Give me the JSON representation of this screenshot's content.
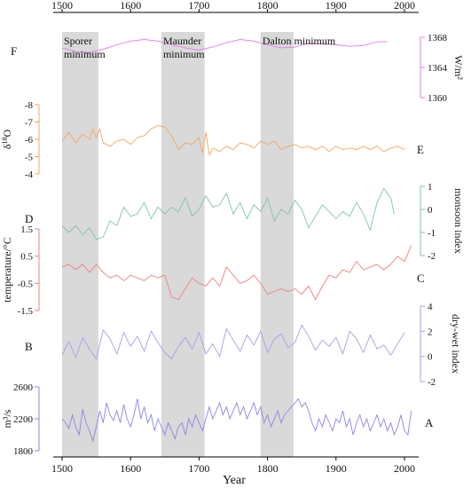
{
  "chart_data": {
    "type": "line",
    "xlabel": "Year",
    "xlim": [
      1500,
      2000
    ],
    "x_ticks": [
      "1500",
      "1600",
      "1700",
      "1800",
      "1900",
      "2000"
    ],
    "shaded_periods": [
      {
        "label_lines": [
          "Sporer",
          "minimum"
        ],
        "start": 1500,
        "end": 1553
      },
      {
        "label_lines": [
          "Maunder",
          "minimum"
        ],
        "start": 1645,
        "end": 1708
      },
      {
        "label_lines": [
          "Dalton minimum"
        ],
        "start": 1790,
        "end": 1838
      }
    ],
    "panels": [
      {
        "letter": "F",
        "ylabel": "W/m²",
        "color": "#e67ce6",
        "axis_side": "right",
        "ylim": [
          1360,
          1370
        ],
        "y_ticks": [
          "1368",
          "1364",
          "1360"
        ],
        "y_tick_values": [
          1368,
          1364,
          1360
        ],
        "x": [
          1500,
          1520,
          1540,
          1560,
          1580,
          1600,
          1620,
          1640,
          1660,
          1680,
          1700,
          1720,
          1740,
          1760,
          1780,
          1800,
          1820,
          1840,
          1860,
          1880,
          1900,
          1920,
          1940,
          1960,
          1975
        ],
        "values": [
          1366.6,
          1366.1,
          1366.0,
          1366.4,
          1367.0,
          1367.5,
          1367.7,
          1367.5,
          1367.0,
          1366.6,
          1366.3,
          1366.7,
          1367.3,
          1367.7,
          1367.5,
          1367.0,
          1366.6,
          1366.7,
          1367.2,
          1367.1,
          1367.0,
          1366.8,
          1366.9,
          1367.4,
          1367.4
        ]
      },
      {
        "letter": "E",
        "ylabel": "δ18O",
        "color": "#f5a75f",
        "axis_side": "left",
        "inverted": true,
        "ylim": [
          -4,
          -8
        ],
        "y_ticks": [
          "-8",
          "-7",
          "-6",
          "-5",
          "-4"
        ],
        "y_tick_values": [
          -8,
          -7,
          -6,
          -5,
          -4
        ],
        "x": [
          1500,
          1510,
          1520,
          1530,
          1540,
          1545,
          1550,
          1555,
          1560,
          1570,
          1580,
          1590,
          1600,
          1610,
          1620,
          1630,
          1640,
          1650,
          1660,
          1670,
          1680,
          1690,
          1700,
          1705,
          1710,
          1715,
          1720,
          1730,
          1740,
          1750,
          1760,
          1770,
          1780,
          1790,
          1800,
          1810,
          1820,
          1830,
          1840,
          1850,
          1860,
          1870,
          1880,
          1890,
          1900,
          1910,
          1920,
          1930,
          1940,
          1950,
          1960,
          1970,
          1980,
          1990,
          2000
        ],
        "values": [
          -5.9,
          -6.4,
          -5.8,
          -6.3,
          -6.0,
          -6.6,
          -6.1,
          -6.6,
          -5.8,
          -5.6,
          -5.9,
          -6.0,
          -5.7,
          -6.1,
          -6.2,
          -6.6,
          -6.8,
          -6.7,
          -6.2,
          -5.4,
          -5.8,
          -5.7,
          -6.1,
          -5.2,
          -6.4,
          -5.1,
          -5.5,
          -5.3,
          -5.6,
          -5.4,
          -5.8,
          -5.7,
          -5.5,
          -5.9,
          -5.7,
          -5.9,
          -5.4,
          -5.6,
          -5.7,
          -5.5,
          -5.6,
          -5.4,
          -5.6,
          -5.3,
          -5.6,
          -5.4,
          -5.5,
          -5.4,
          -5.6,
          -5.4,
          -5.6,
          -5.3,
          -5.5,
          -5.6,
          -5.4
        ]
      },
      {
        "letter": "D",
        "ylabel": "monsoon index",
        "color": "#7fc3a7",
        "axis_side": "right",
        "ylim": [
          -2,
          1
        ],
        "y_ticks": [
          "1",
          "0",
          "-1",
          "-2"
        ],
        "y_tick_values": [
          1,
          0,
          -1,
          -2
        ],
        "x": [
          1500,
          1510,
          1520,
          1530,
          1540,
          1550,
          1560,
          1570,
          1580,
          1590,
          1600,
          1610,
          1620,
          1630,
          1640,
          1650,
          1660,
          1670,
          1680,
          1690,
          1700,
          1710,
          1720,
          1730,
          1740,
          1750,
          1760,
          1770,
          1780,
          1790,
          1800,
          1810,
          1820,
          1830,
          1840,
          1850,
          1860,
          1870,
          1880,
          1890,
          1900,
          1910,
          1920,
          1930,
          1940,
          1950,
          1960,
          1970,
          1980,
          1985
        ],
        "values": [
          -0.7,
          -1.0,
          -0.7,
          -1.1,
          -0.8,
          -1.3,
          -1.2,
          -0.5,
          -0.7,
          0.1,
          -0.3,
          -0.2,
          0.3,
          -0.4,
          0.1,
          -0.2,
          0.1,
          -0.1,
          0.5,
          -0.3,
          0.0,
          0.6,
          0.1,
          0.2,
          0.7,
          -0.2,
          0.3,
          -0.4,
          0.2,
          -0.1,
          0.5,
          -0.5,
          0.0,
          -0.2,
          0.4,
          0.0,
          -0.8,
          -0.3,
          0.2,
          -0.1,
          -0.4,
          -0.1,
          -0.3,
          0.3,
          -0.2,
          -0.9,
          0.3,
          0.9,
          0.5,
          -0.2
        ]
      },
      {
        "letter": "C",
        "ylabel": "temperature/°C",
        "color": "#f08080",
        "axis_side": "left",
        "ylim": [
          -1.5,
          1.5
        ],
        "y_ticks": [
          "1.5",
          "0.5",
          "-0.5",
          "-1.5"
        ],
        "y_tick_values": [
          1.5,
          0.5,
          -0.5,
          -1.5
        ],
        "x": [
          1500,
          1510,
          1520,
          1530,
          1540,
          1550,
          1560,
          1570,
          1580,
          1590,
          1600,
          1610,
          1620,
          1630,
          1640,
          1650,
          1660,
          1670,
          1680,
          1690,
          1700,
          1710,
          1720,
          1730,
          1740,
          1750,
          1760,
          1770,
          1780,
          1790,
          1800,
          1810,
          1820,
          1830,
          1840,
          1850,
          1860,
          1870,
          1880,
          1890,
          1900,
          1910,
          1920,
          1930,
          1940,
          1950,
          1960,
          1970,
          1980,
          1990,
          2000,
          2010
        ],
        "values": [
          0.1,
          0.2,
          0.0,
          0.2,
          -0.1,
          0.2,
          -0.1,
          -0.3,
          -0.2,
          -0.4,
          -0.2,
          -0.3,
          -0.4,
          -0.2,
          -0.3,
          -0.2,
          -1.0,
          -1.1,
          -0.7,
          -0.3,
          -0.5,
          -0.6,
          -0.3,
          -0.6,
          0.1,
          -0.2,
          -0.5,
          -0.4,
          -0.2,
          -0.5,
          -0.9,
          -0.8,
          -0.7,
          -0.8,
          -0.7,
          -0.9,
          -0.6,
          -1.1,
          -0.6,
          -0.2,
          -0.3,
          0.0,
          -0.1,
          0.3,
          0.0,
          0.1,
          0.2,
          0.0,
          0.2,
          0.5,
          0.3,
          0.9
        ]
      },
      {
        "letter": "B",
        "ylabel": "dry-wet index",
        "color": "#b09ae6",
        "axis_side": "right",
        "ylim": [
          -2,
          4
        ],
        "y_ticks": [
          "4",
          "2",
          "0",
          "-2"
        ],
        "y_tick_values": [
          4,
          2,
          0,
          -2
        ],
        "x": [
          1500,
          1510,
          1520,
          1530,
          1540,
          1550,
          1560,
          1570,
          1580,
          1590,
          1600,
          1610,
          1620,
          1630,
          1640,
          1650,
          1660,
          1670,
          1680,
          1690,
          1700,
          1710,
          1720,
          1730,
          1740,
          1750,
          1760,
          1770,
          1780,
          1790,
          1800,
          1810,
          1820,
          1830,
          1840,
          1850,
          1860,
          1870,
          1880,
          1890,
          1900,
          1910,
          1920,
          1930,
          1940,
          1950,
          1960,
          1970,
          1980,
          1990,
          2000
        ],
        "values": [
          0.1,
          1.2,
          -0.1,
          1.5,
          0.6,
          -0.2,
          2.1,
          1.4,
          0.2,
          1.9,
          0.8,
          1.6,
          0.4,
          2.0,
          1.1,
          0.3,
          -0.2,
          0.8,
          1.5,
          0.6,
          1.9,
          0.2,
          1.0,
          0.0,
          2.2,
          1.3,
          0.4,
          1.7,
          0.9,
          2.0,
          0.3,
          1.4,
          1.8,
          0.7,
          1.1,
          2.5,
          1.6,
          0.5,
          1.3,
          0.8,
          1.5,
          0.2,
          2.0,
          1.4,
          0.3,
          1.7,
          0.6,
          0.9,
          0.1,
          1.0,
          1.9
        ]
      },
      {
        "letter": "A",
        "ylabel": "m³/s",
        "color": "#8b85e6",
        "axis_side": "left",
        "ylim": [
          1800,
          2600
        ],
        "y_ticks": [
          "2600",
          "2200",
          "1800"
        ],
        "y_tick_values": [
          2600,
          2200,
          1800
        ],
        "x": [
          1500,
          1505,
          1510,
          1515,
          1520,
          1525,
          1530,
          1535,
          1540,
          1545,
          1550,
          1555,
          1560,
          1565,
          1570,
          1575,
          1580,
          1585,
          1590,
          1595,
          1600,
          1605,
          1610,
          1615,
          1620,
          1625,
          1630,
          1635,
          1640,
          1645,
          1650,
          1655,
          1660,
          1665,
          1670,
          1675,
          1680,
          1685,
          1690,
          1695,
          1700,
          1705,
          1710,
          1715,
          1720,
          1725,
          1730,
          1735,
          1740,
          1745,
          1750,
          1755,
          1760,
          1765,
          1770,
          1775,
          1780,
          1785,
          1790,
          1795,
          1800,
          1805,
          1810,
          1815,
          1820,
          1825,
          1830,
          1835,
          1840,
          1845,
          1850,
          1855,
          1860,
          1865,
          1870,
          1875,
          1880,
          1885,
          1890,
          1895,
          1900,
          1905,
          1910,
          1915,
          1920,
          1925,
          1930,
          1935,
          1940,
          1945,
          1950,
          1955,
          1960,
          1965,
          1970,
          1975,
          1980,
          1985,
          1990,
          1995,
          2000,
          2005,
          2010
        ],
        "values": [
          2200,
          2150,
          2080,
          2250,
          2100,
          2000,
          2320,
          2150,
          2050,
          1920,
          2100,
          2300,
          2150,
          2400,
          2250,
          2180,
          2300,
          2150,
          2380,
          2200,
          2100,
          2250,
          2450,
          2200,
          2350,
          2150,
          2250,
          2050,
          2200,
          2100,
          2000,
          2150,
          2050,
          1950,
          2100,
          2150,
          2000,
          2200,
          2100,
          2250,
          2150,
          2050,
          2200,
          2350,
          2200,
          2300,
          2400,
          2250,
          2350,
          2200,
          2300,
          2400,
          2250,
          2350,
          2200,
          2300,
          2400,
          2250,
          2350,
          2150,
          2250,
          2100,
          2200,
          2300,
          2150,
          2250,
          2300,
          2350,
          2400,
          2450,
          2350,
          2400,
          2300,
          2150,
          2050,
          2200,
          2100,
          2250,
          2150,
          2050,
          2200,
          2150,
          2300,
          2100,
          2200,
          2000,
          2150,
          2250,
          2100,
          2200,
          2050,
          2150,
          2250,
          2100,
          2200,
          2050,
          2150,
          2000,
          2100,
          2250,
          2050,
          2000,
          2300
        ]
      }
    ]
  }
}
